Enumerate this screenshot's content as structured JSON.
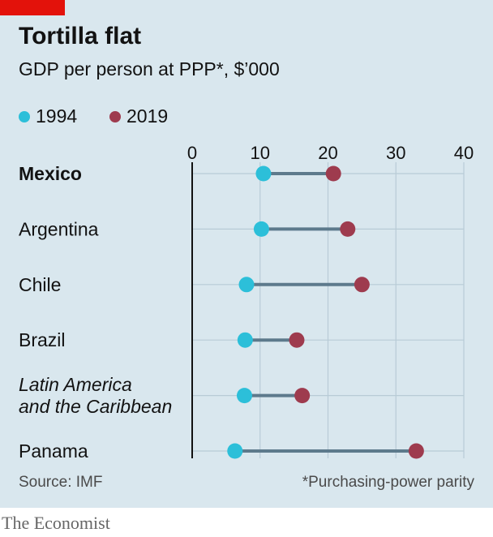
{
  "chart_data": {
    "type": "dumbbell",
    "title": "Tortilla flat",
    "subtitle": "GDP per person at PPP*, $’000",
    "xlim": [
      0,
      40
    ],
    "xticks": [
      "0",
      "10",
      "20",
      "30",
      "40"
    ],
    "xtick_values": [
      0,
      10,
      20,
      30,
      40
    ],
    "grid": true,
    "legend_position": "top-left",
    "series": [
      {
        "name": "1994",
        "color": "#2cbfd9"
      },
      {
        "name": "2019",
        "color": "#9e3b4e"
      }
    ],
    "categories": [
      {
        "label": "Mexico",
        "lines": [
          "Mexico"
        ],
        "style": "bold",
        "v1994": 10.5,
        "v2019": 20.8
      },
      {
        "label": "Argentina",
        "lines": [
          "Argentina"
        ],
        "style": "normal",
        "v1994": 10.2,
        "v2019": 22.9
      },
      {
        "label": "Chile",
        "lines": [
          "Chile"
        ],
        "style": "normal",
        "v1994": 8.0,
        "v2019": 25.0
      },
      {
        "label": "Brazil",
        "lines": [
          "Brazil"
        ],
        "style": "normal",
        "v1994": 7.8,
        "v2019": 15.4
      },
      {
        "label": "Latin America and the Caribbean",
        "lines": [
          "Latin America",
          "and the Caribbean"
        ],
        "style": "italic",
        "v1994": 7.7,
        "v2019": 16.2
      },
      {
        "label": "Panama",
        "lines": [
          "Panama"
        ],
        "style": "normal",
        "v1994": 6.3,
        "v2019": 33.0
      }
    ],
    "source": "Source: IMF",
    "footnote": "*Purchasing-power parity"
  },
  "branding": {
    "publication": "The Economist",
    "accent_color": "#e3120b"
  },
  "colors": {
    "background": "#d9e7ee",
    "connector": "#5d7a8c",
    "gridline": "#b8cbd6"
  }
}
